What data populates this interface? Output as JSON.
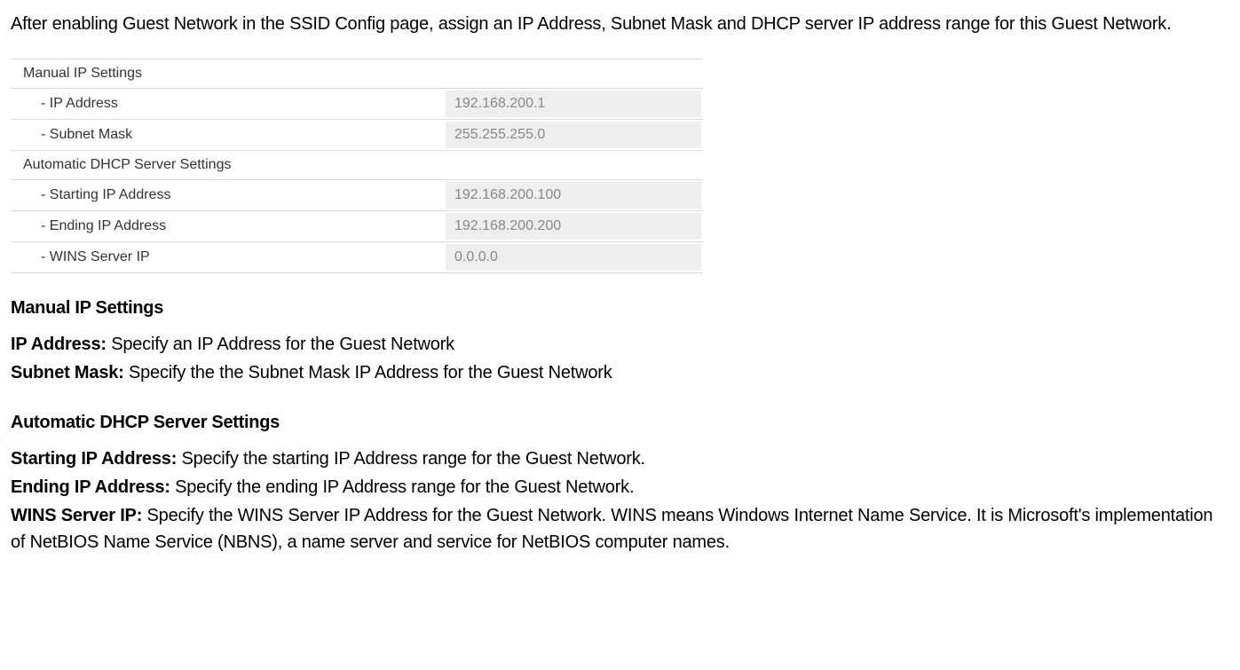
{
  "intro": "After enabling Guest Network in the SSID Config page, assign an IP Address, Subnet Mask and DHCP server IP address range for this Guest Network.",
  "panel": {
    "manualHeader": "Manual IP Settings",
    "ipAddressLabel": "- IP Address",
    "ipAddressValue": "192.168.200.1",
    "subnetLabel": "- Subnet Mask",
    "subnetValue": "255.255.255.0",
    "dhcpHeader": "Automatic DHCP Server Settings",
    "startIpLabel": "- Starting IP Address",
    "startIpValue": "192.168.200.100",
    "endIpLabel": "- Ending IP Address",
    "endIpValue": "192.168.200.200",
    "winsLabel": "- WINS Server IP",
    "winsValue": "0.0.0.0"
  },
  "sections": {
    "manual": {
      "heading": "Manual IP Settings",
      "ipLabel": "IP Address:",
      "ipText": " Specify an IP Address for the Guest Network",
      "subnetLabel": "Subnet Mask:",
      "subnetText": " Specify the the Subnet Mask IP Address for the Guest Network"
    },
    "dhcp": {
      "heading": "Automatic DHCP Server Settings",
      "startLabel": "Starting IP Address:",
      "startText": " Specify the starting IP Address range for the Guest Network.",
      "endLabel": "Ending IP Address:",
      "endText": " Specify the ending IP Address range for the Guest Network.",
      "winsLabel": "WINS Server IP:",
      "winsText": " Specify the WINS Server IP Address for the Guest Network. WINS means Windows Internet Name Service. It is Microsoft's implementation of NetBIOS Name Service (NBNS), a name server and service for NetBIOS computer names."
    }
  }
}
